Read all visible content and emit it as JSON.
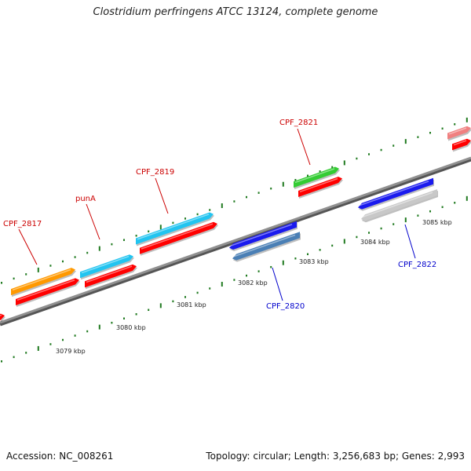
{
  "title": "Clostridium perfringens ATCC 13124, complete genome",
  "footer": {
    "accession": "Accession: NC_008261",
    "topology": "Topology: circular; Length: 3,256,683 bp; Genes: 2,993"
  },
  "kbp_labels": [
    "3079 kbp",
    "3080 kbp",
    "3081 kbp",
    "3082 kbp",
    "3083 kbp",
    "3084 kbp",
    "3085 kbp"
  ],
  "colors": {
    "backbone": "#808080",
    "tick": "#1f7a1f",
    "label_forward": "#cc0000",
    "label_reverse": "#0000cc",
    "orange": "#ff9900",
    "cyan": "#22c4f0",
    "red": "#ff0000",
    "green": "#33cc33",
    "blue": "#1a1aee",
    "steel": "#4a7fb5",
    "silver": "#c8c8c8",
    "pink": "#f08080"
  },
  "gene_labels": [
    {
      "name": "CPF_2817",
      "strand": "forward"
    },
    {
      "name": "punA",
      "strand": "forward"
    },
    {
      "name": "CPF_2819",
      "strand": "forward"
    },
    {
      "name": "CPF_2821",
      "strand": "forward"
    },
    {
      "name": "CPF_2820",
      "strand": "reverse"
    },
    {
      "name": "CPF_2822",
      "strand": "reverse"
    }
  ]
}
